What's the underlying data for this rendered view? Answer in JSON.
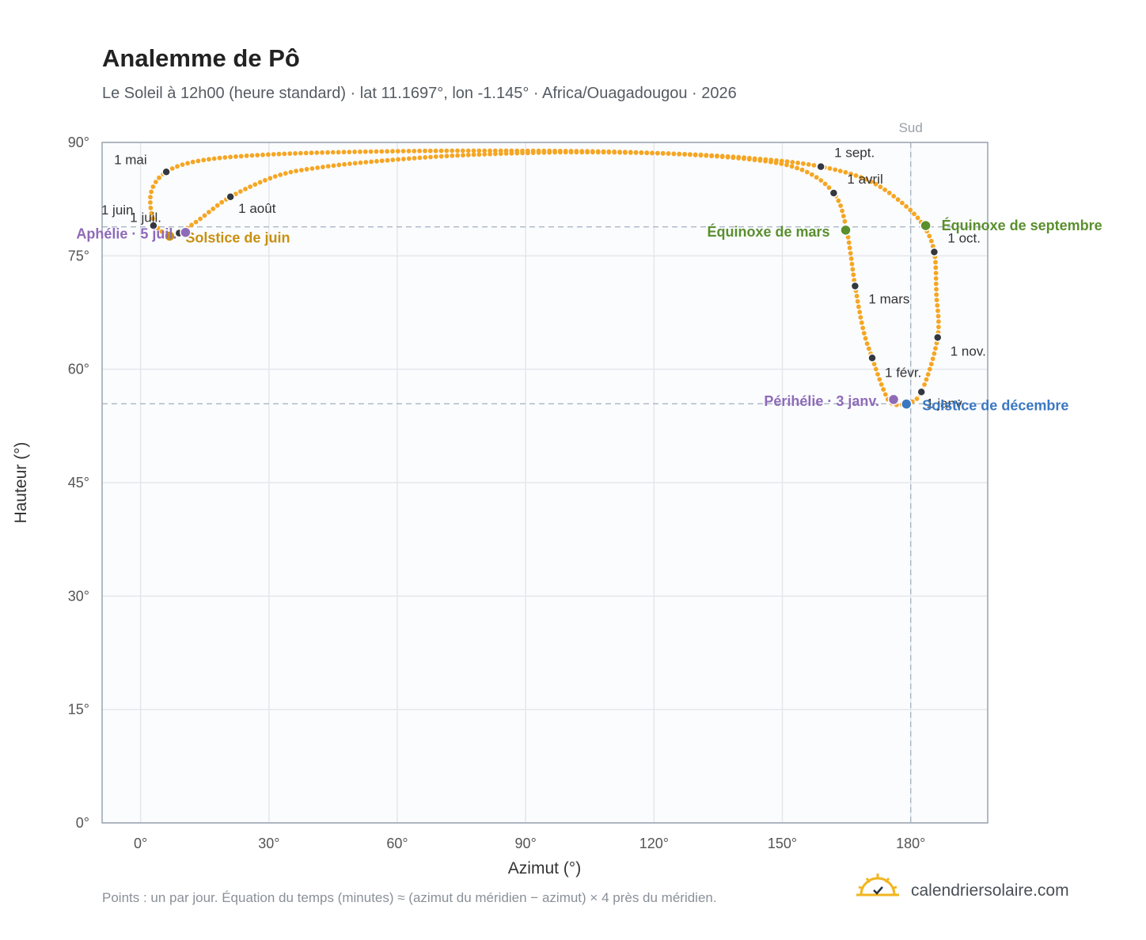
{
  "title": "Analemme de Pô",
  "subtitle": "Le Soleil à 12h00 (heure standard) · lat 11.1697°, lon -1.145° · Africa/Ouagadougou · 2026",
  "footer_note": "Points : un par jour. Équation du temps (minutes) ≈ (azimut du méridien − azimut) × 4 près du méridien.",
  "brand": {
    "name": "calendriersolaire.com",
    "icon": "sun-check-icon"
  },
  "colors": {
    "path": "#f5a623",
    "month_point": "#333840",
    "june_solstice": "#c8900f",
    "december_solstice": "#3b78c2",
    "equinox": "#5a8f2e",
    "aphelion_perihelion": "#8e6bb8",
    "grid": "#e3e7ec",
    "plot_bg": "#fbfcfe",
    "frame": "#9aa3af",
    "reference_line": "#aab6c4"
  },
  "chart_data": {
    "type": "scatter",
    "title": "Analemme de Pô",
    "xlabel": "Azimut (°)",
    "ylabel": "Hauteur (°)",
    "xlim": [
      -9,
      198
    ],
    "ylim": [
      0,
      90
    ],
    "xticks": [
      0,
      30,
      60,
      90,
      120,
      150,
      180
    ],
    "xtick_labels": [
      "0°",
      "30°",
      "60°",
      "90°",
      "120°",
      "150°",
      "180°"
    ],
    "yticks": [
      0,
      15,
      30,
      45,
      60,
      75,
      90
    ],
    "ytick_labels": [
      "0°",
      "15°",
      "30°",
      "45°",
      "60°",
      "75°",
      "90°"
    ],
    "grid": true,
    "meridian": {
      "azimuth": 180,
      "label": "Sud"
    },
    "reference_altitudes": [
      78.83,
      55.43
    ],
    "path_anchors": [
      {
        "az": 175.5,
        "alt": 55.5
      },
      {
        "az": 179.0,
        "alt": 55.5
      },
      {
        "az": 182.5,
        "alt": 57.0
      },
      {
        "az": 186.3,
        "alt": 64.2
      },
      {
        "az": 186.0,
        "alt": 70.0
      },
      {
        "az": 185.5,
        "alt": 75.5
      },
      {
        "az": 183.0,
        "alt": 79.0
      },
      {
        "az": 178.0,
        "alt": 82.0
      },
      {
        "az": 170.0,
        "alt": 85.0
      },
      {
        "az": 159.0,
        "alt": 86.8
      },
      {
        "az": 145.0,
        "alt": 87.8
      },
      {
        "az": 125.0,
        "alt": 88.5
      },
      {
        "az": 100.0,
        "alt": 88.7
      },
      {
        "az": 75.0,
        "alt": 88.3
      },
      {
        "az": 55.0,
        "alt": 87.5
      },
      {
        "az": 42.0,
        "alt": 86.7
      },
      {
        "az": 32.0,
        "alt": 85.6
      },
      {
        "az": 21.0,
        "alt": 82.8
      },
      {
        "az": 13.0,
        "alt": 79.5
      },
      {
        "az": 8.5,
        "alt": 78.0
      },
      {
        "az": 5.0,
        "alt": 78.2
      },
      {
        "az": 2.8,
        "alt": 80.0
      },
      {
        "az": 2.5,
        "alt": 83.5
      },
      {
        "az": 6.0,
        "alt": 86.1
      },
      {
        "az": 14.0,
        "alt": 87.6
      },
      {
        "az": 30.0,
        "alt": 88.4
      },
      {
        "az": 55.0,
        "alt": 88.8
      },
      {
        "az": 85.0,
        "alt": 88.9
      },
      {
        "az": 115.0,
        "alt": 88.7
      },
      {
        "az": 140.0,
        "alt": 87.9
      },
      {
        "az": 154.0,
        "alt": 86.5
      },
      {
        "az": 162.0,
        "alt": 83.3
      },
      {
        "az": 165.0,
        "alt": 78.5
      },
      {
        "az": 167.0,
        "alt": 71.0
      },
      {
        "az": 169.0,
        "alt": 65.0
      },
      {
        "az": 171.0,
        "alt": 61.5
      },
      {
        "az": 173.5,
        "alt": 57.5
      },
      {
        "az": 175.5,
        "alt": 55.5
      }
    ],
    "month_points": [
      {
        "label": "1 janv.",
        "az": 182.5,
        "alt": 57.0
      },
      {
        "label": "1 févr.",
        "az": 171.0,
        "alt": 61.5
      },
      {
        "label": "1 mars",
        "az": 167.0,
        "alt": 71.0
      },
      {
        "label": "1 avril",
        "az": 162.0,
        "alt": 83.3
      },
      {
        "label": "1 mai",
        "az": 6.0,
        "alt": 86.1
      },
      {
        "label": "1 juin",
        "az": 3.0,
        "alt": 79.0
      },
      {
        "label": "1 juil.",
        "az": 9.0,
        "alt": 78.0
      },
      {
        "label": "1 août",
        "az": 21.0,
        "alt": 82.8
      },
      {
        "label": "1 sept.",
        "az": 159.0,
        "alt": 86.8
      },
      {
        "label": "1 oct.",
        "az": 185.5,
        "alt": 75.5
      },
      {
        "label": "1 nov.",
        "az": 186.3,
        "alt": 64.2
      }
    ],
    "events": [
      {
        "label": "Solstice de juin",
        "az": 6.8,
        "alt": 77.6,
        "kind": "june_solstice"
      },
      {
        "label": "Aphélie · 5 juil.",
        "az": 10.5,
        "alt": 78.1,
        "kind": "aphelion_perihelion"
      },
      {
        "label": "Équinoxe de mars",
        "az": 164.8,
        "alt": 78.4,
        "kind": "equinox"
      },
      {
        "label": "Équinoxe de septembre",
        "az": 183.5,
        "alt": 79.0,
        "kind": "equinox"
      },
      {
        "label": "Périhélie · 3 janv.",
        "az": 176.0,
        "alt": 56.0,
        "kind": "aphelion_perihelion"
      },
      {
        "label": "Solstice de décembre",
        "az": 179.0,
        "alt": 55.4,
        "kind": "december_solstice"
      }
    ]
  }
}
